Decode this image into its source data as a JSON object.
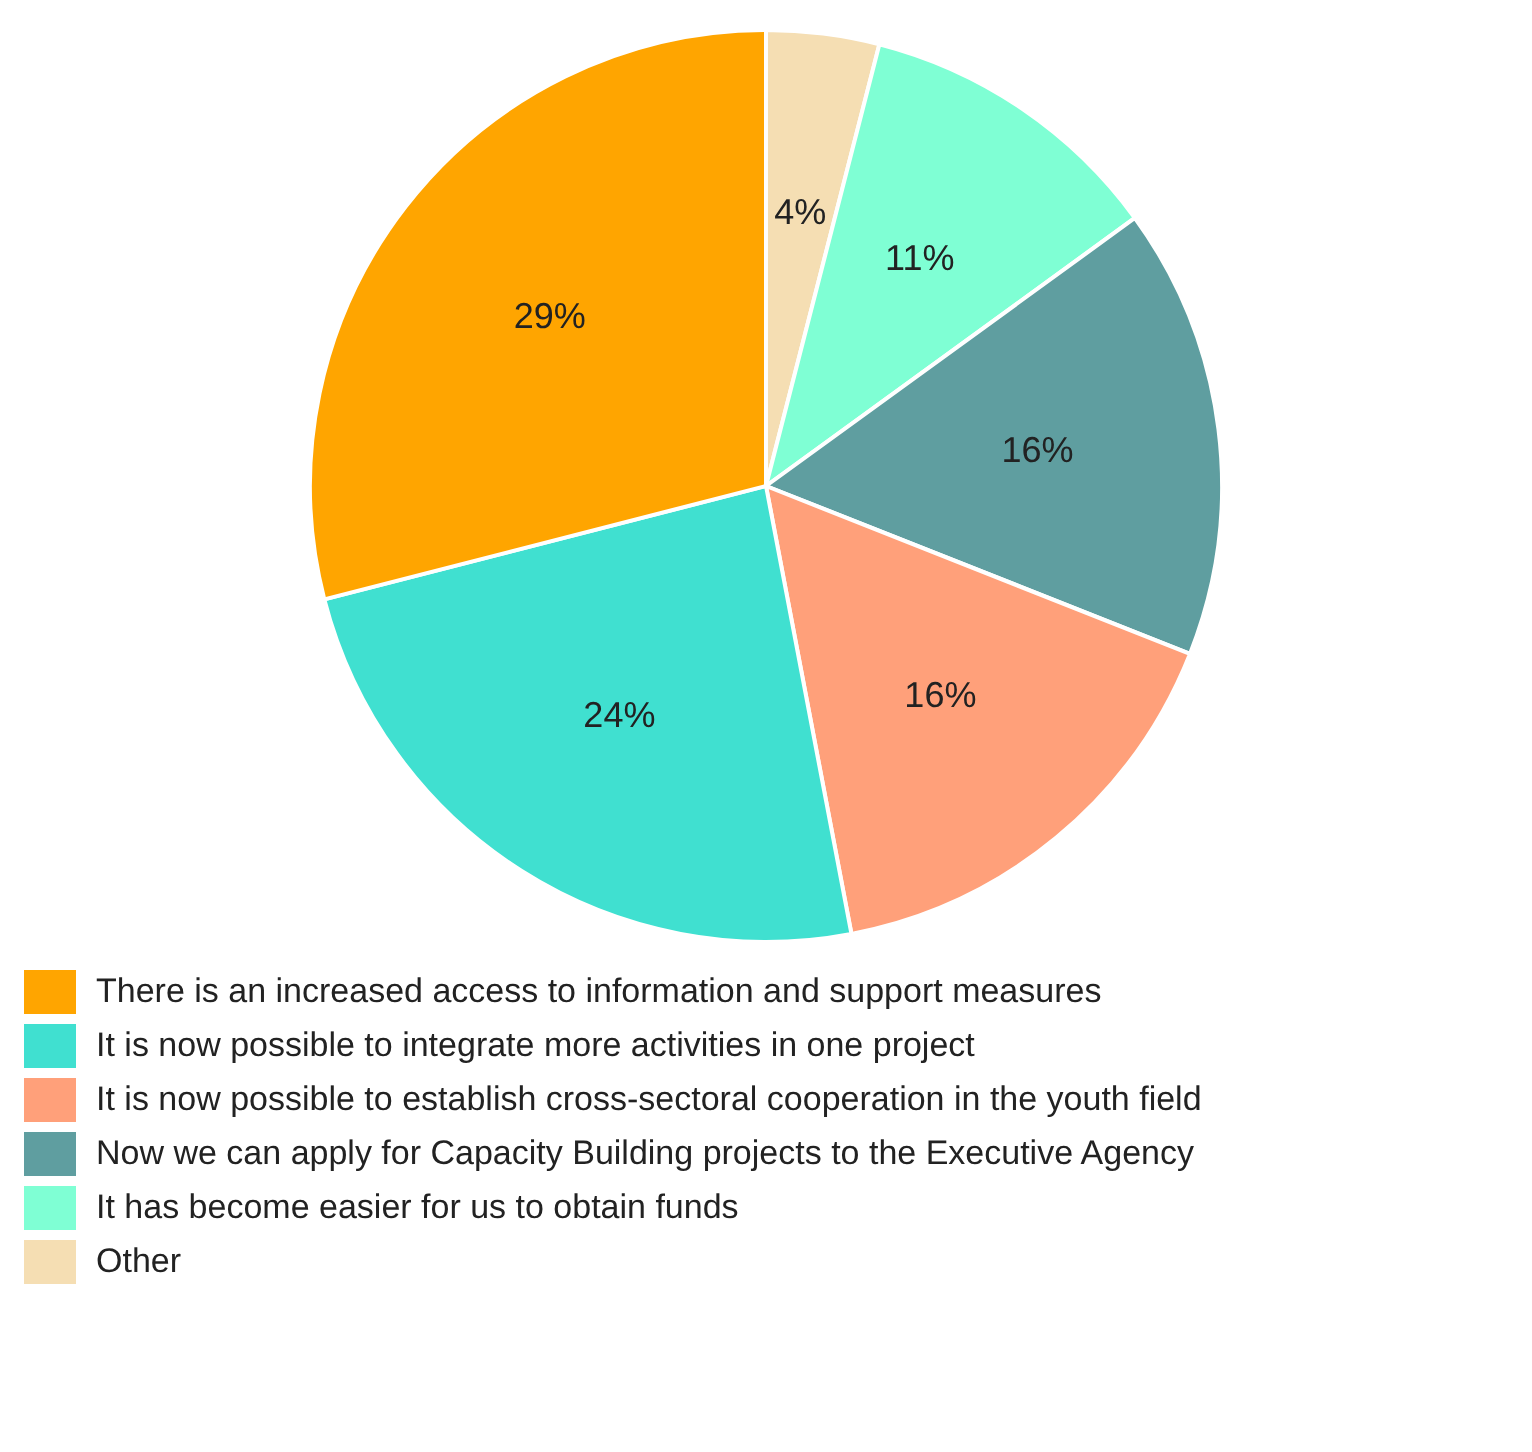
{
  "chart_data": {
    "type": "pie",
    "categories": [
      "There is an increased access to information and support measures",
      "It is now possible to integrate more activities in one project",
      "It is now possible to establish cross-sectoral cooperation in the youth field",
      "Now we can apply for Capacity Building projects to the Executive Agency",
      "It has become easier for us to obtain funds",
      "Other"
    ],
    "values": [
      29,
      24,
      16,
      16,
      11,
      4
    ],
    "colors": [
      "#ffa500",
      "#40e0d0",
      "#ffa07a",
      "#5f9ea0",
      "#7fffd4",
      "#f5deb3"
    ],
    "value_labels": [
      "29%",
      "24%",
      "16%",
      "16%",
      "11%",
      "4%"
    ],
    "legend": "bottom"
  }
}
